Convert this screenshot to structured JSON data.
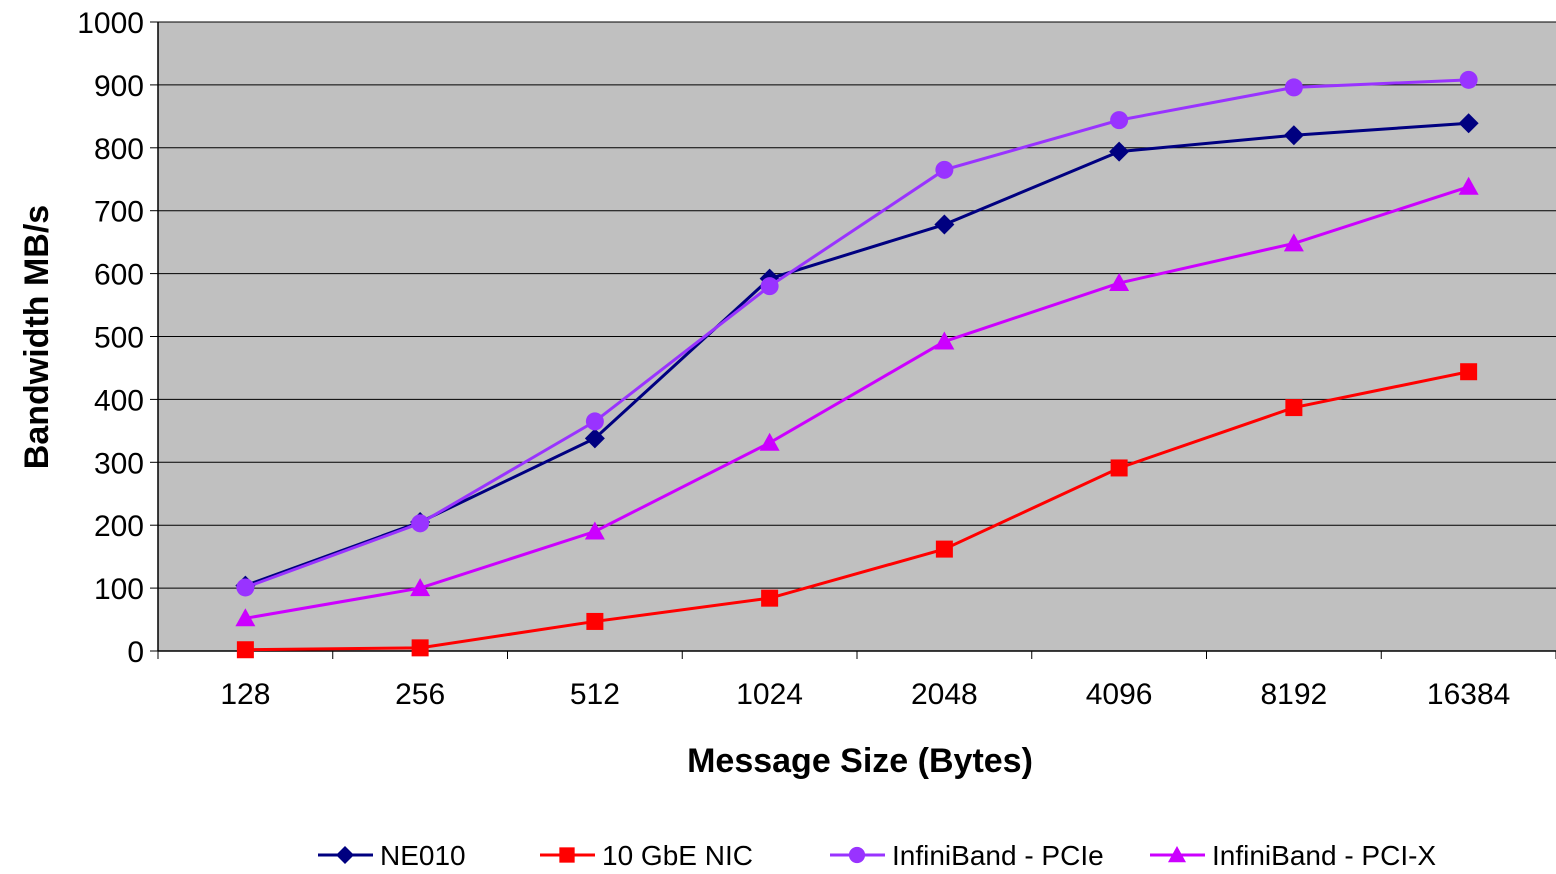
{
  "chart_data": {
    "type": "line",
    "xlabel": "Message Size (Bytes)",
    "ylabel": "Bandwidth MB/s",
    "categories": [
      "128",
      "256",
      "512",
      "1024",
      "2048",
      "4096",
      "8192",
      "16384"
    ],
    "ylim": [
      0,
      1000
    ],
    "yticks": [
      0,
      100,
      200,
      300,
      400,
      500,
      600,
      700,
      800,
      900,
      1000
    ],
    "grid": true,
    "legend_position": "bottom",
    "plot_background": "#c0c0c0",
    "series": [
      {
        "name": "NE010",
        "color": "#000080",
        "marker": "diamond",
        "values": [
          104,
          205,
          338,
          592,
          678,
          794,
          820,
          839
        ]
      },
      {
        "name": "10 GbE NIC",
        "color": "#ff0000",
        "marker": "square",
        "values": [
          2,
          5,
          47,
          84,
          162,
          291,
          387,
          444
        ]
      },
      {
        "name": "InfiniBand - PCIe",
        "color": "#9933ff",
        "marker": "circle",
        "values": [
          101,
          203,
          365,
          580,
          765,
          844,
          896,
          908
        ]
      },
      {
        "name": "InfiniBand - PCI-X",
        "color": "#cc00ff",
        "marker": "triangle",
        "values": [
          52,
          100,
          190,
          331,
          492,
          585,
          648,
          738
        ]
      }
    ]
  }
}
